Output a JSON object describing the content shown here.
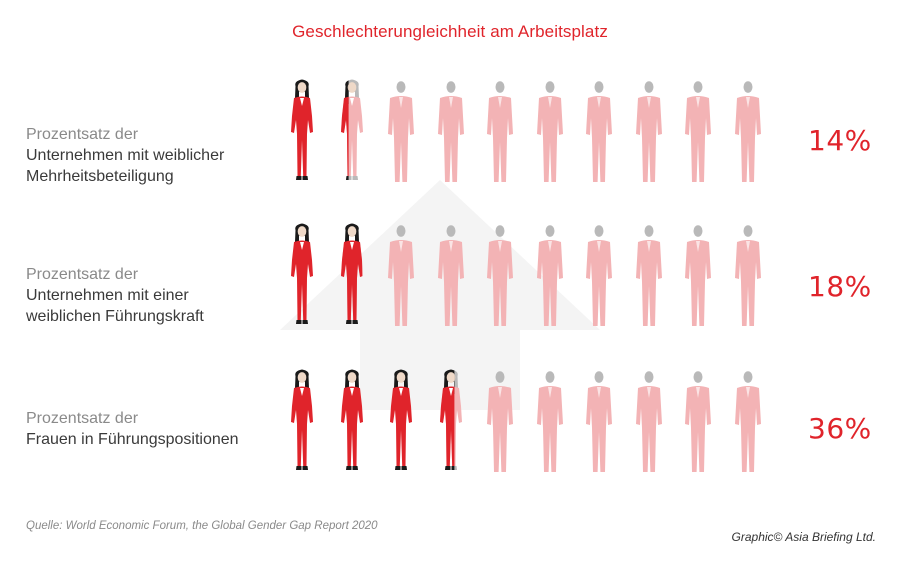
{
  "title": "Geschlechterungleichheit am Arbeitsplatz",
  "chart_data": {
    "type": "pictogram",
    "icons_per_row": 10,
    "rows": [
      {
        "label_lines": [
          "Prozentsatz der",
          "Unternehmen mit weiblicher",
          "Mehrheitsbeteiligung"
        ],
        "value": 14,
        "value_label": "14%"
      },
      {
        "label_lines": [
          "Prozentsatz der",
          "Unternehmen mit einer",
          "weiblichen Führungskraft"
        ],
        "value": 18,
        "value_label": "18%"
      },
      {
        "label_lines": [
          "Prozentsatz der",
          "Frauen in Führungspositionen",
          ""
        ],
        "value": 36,
        "value_label": "36%"
      }
    ],
    "colors": {
      "female": "#e0242b",
      "male_faded": "#f3b3b5",
      "accent": "#e0242b"
    }
  },
  "source": "Quelle:  World Economic Forum, the Global Gender Gap Report 2020",
  "credit": "Graphic© Asia Briefing Ltd."
}
